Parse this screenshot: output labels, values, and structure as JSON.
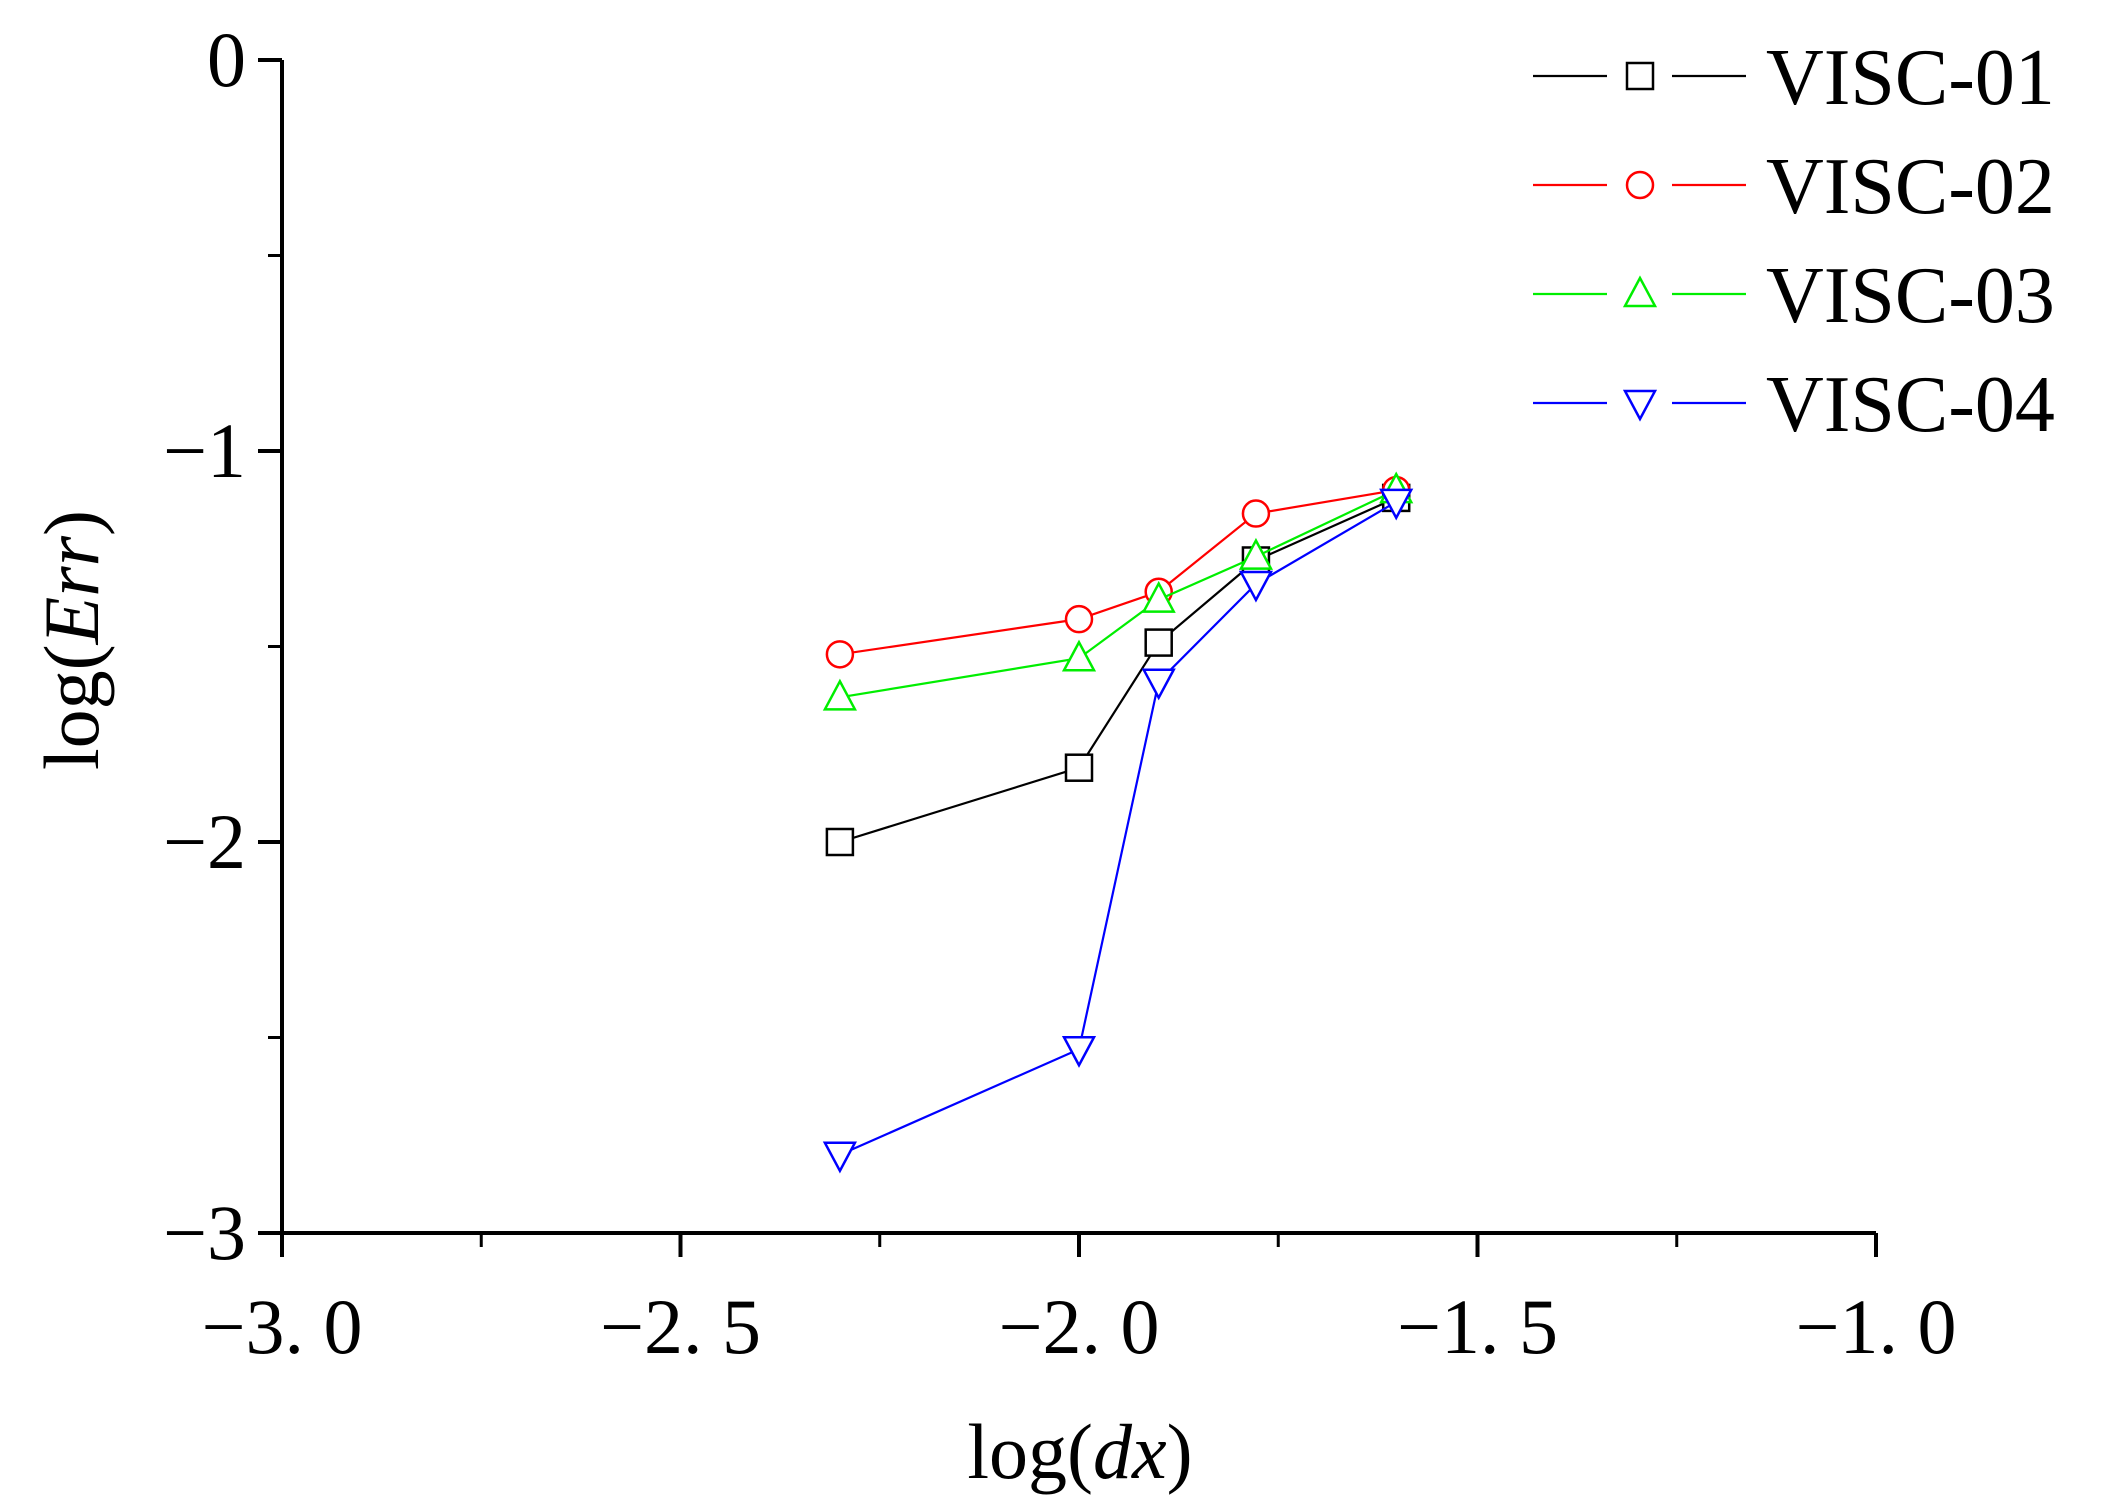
{
  "chart_data": {
    "type": "line",
    "xlabel": "log(dx)",
    "xlabel_parts": {
      "prefix": "log(",
      "var": "dx",
      "suffix": ")"
    },
    "ylabel": "log(Err)",
    "ylabel_parts": {
      "prefix": "log(",
      "var": "Err",
      "suffix": ")"
    },
    "xlim": [
      -3.0,
      -1.0
    ],
    "ylim": [
      -3,
      0
    ],
    "x_ticks": [
      -3.0,
      -2.5,
      -2.0,
      -1.5,
      -1.0
    ],
    "x_tick_labels": [
      "−3. 0",
      "−2. 5",
      "−2. 0",
      "−1. 5",
      "−1. 0"
    ],
    "x_minor_ticks": [
      -2.75,
      -2.25,
      -1.75,
      -1.25
    ],
    "y_ticks": [
      0,
      -1,
      -2,
      -3
    ],
    "y_tick_labels": [
      "0",
      "−1",
      "−2",
      "−3"
    ],
    "y_minor_ticks": [
      -0.5,
      -1.5,
      -2.5
    ],
    "grid": false,
    "legend_position": "top-right",
    "series": [
      {
        "name": "VISC-01",
        "color": "#000000",
        "marker": "square",
        "x": [
          -2.3,
          -2.0,
          -1.9,
          -1.778,
          -1.602
        ],
        "y": [
          -2.0,
          -1.81,
          -1.49,
          -1.28,
          -1.12
        ]
      },
      {
        "name": "VISC-02",
        "color": "#ff0000",
        "marker": "circle",
        "x": [
          -2.3,
          -2.0,
          -1.9,
          -1.778,
          -1.602
        ],
        "y": [
          -1.52,
          -1.43,
          -1.36,
          -1.16,
          -1.1
        ]
      },
      {
        "name": "VISC-03",
        "color": "#00ee00",
        "marker": "triangle-up",
        "x": [
          -2.3,
          -2.0,
          -1.9,
          -1.778,
          -1.602
        ],
        "y": [
          -1.63,
          -1.53,
          -1.38,
          -1.27,
          -1.1
        ]
      },
      {
        "name": "VISC-04",
        "color": "#0000ff",
        "marker": "triangle-down",
        "x": [
          -2.3,
          -2.0,
          -1.9,
          -1.778,
          -1.602
        ],
        "y": [
          -2.8,
          -2.53,
          -1.59,
          -1.34,
          -1.13
        ]
      }
    ]
  }
}
